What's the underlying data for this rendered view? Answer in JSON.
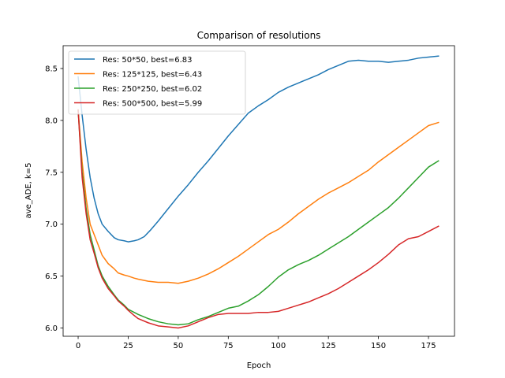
{
  "chart_data": {
    "type": "line",
    "title": "Comparison of resolutions",
    "xlabel": "Epoch",
    "ylabel": "ave_ADE, k=5",
    "xlim": [
      -7.5,
      188
    ],
    "ylim": [
      5.92,
      8.72
    ],
    "xticks": [
      0,
      25,
      50,
      75,
      100,
      125,
      150,
      175
    ],
    "yticks": [
      6.0,
      6.5,
      7.0,
      7.5,
      8.0,
      8.5
    ],
    "ytick_labels": [
      "6.0",
      "6.5",
      "7.0",
      "7.5",
      "8.0",
      "8.5"
    ],
    "grid": false,
    "legend_position": "upper-left",
    "series": [
      {
        "name": "Res: 50*50, best=6.83",
        "color": "#1f77b4",
        "x": [
          0,
          2,
          4,
          6,
          8,
          10,
          12,
          15,
          18,
          20,
          23,
          25,
          28,
          30,
          33,
          36,
          40,
          45,
          50,
          55,
          60,
          65,
          70,
          75,
          80,
          85,
          90,
          95,
          100,
          105,
          110,
          115,
          120,
          125,
          130,
          135,
          140,
          145,
          150,
          155,
          160,
          165,
          170,
          175,
          180
        ],
        "values": [
          8.42,
          8.05,
          7.72,
          7.45,
          7.25,
          7.1,
          7.0,
          6.93,
          6.87,
          6.85,
          6.84,
          6.83,
          6.84,
          6.85,
          6.88,
          6.94,
          7.03,
          7.15,
          7.27,
          7.38,
          7.5,
          7.61,
          7.73,
          7.85,
          7.96,
          8.07,
          8.14,
          8.2,
          8.27,
          8.32,
          8.36,
          8.4,
          8.44,
          8.49,
          8.53,
          8.57,
          8.58,
          8.57,
          8.57,
          8.56,
          8.57,
          8.58,
          8.6,
          8.61,
          8.62
        ]
      },
      {
        "name": "Res: 125*125, best=6.43",
        "color": "#ff7f0e",
        "x": [
          0,
          2,
          4,
          6,
          8,
          10,
          12,
          15,
          18,
          20,
          23,
          25,
          28,
          30,
          35,
          40,
          45,
          50,
          55,
          60,
          65,
          70,
          75,
          80,
          85,
          90,
          95,
          100,
          105,
          110,
          115,
          120,
          125,
          130,
          135,
          140,
          145,
          150,
          155,
          160,
          165,
          170,
          175,
          180
        ],
        "values": [
          8.1,
          7.6,
          7.25,
          7.0,
          6.9,
          6.8,
          6.7,
          6.62,
          6.57,
          6.53,
          6.51,
          6.5,
          6.48,
          6.47,
          6.45,
          6.44,
          6.44,
          6.43,
          6.45,
          6.48,
          6.52,
          6.57,
          6.63,
          6.69,
          6.76,
          6.83,
          6.9,
          6.95,
          7.02,
          7.1,
          7.17,
          7.24,
          7.3,
          7.35,
          7.4,
          7.46,
          7.52,
          7.6,
          7.67,
          7.74,
          7.81,
          7.88,
          7.95,
          7.98
        ]
      },
      {
        "name": "Res: 250*250, best=6.02",
        "color": "#2ca02c",
        "x": [
          0,
          2,
          4,
          6,
          8,
          10,
          12,
          15,
          18,
          20,
          23,
          25,
          28,
          30,
          35,
          40,
          45,
          50,
          55,
          60,
          65,
          70,
          75,
          80,
          85,
          90,
          95,
          100,
          105,
          110,
          115,
          120,
          125,
          130,
          135,
          140,
          145,
          150,
          155,
          160,
          165,
          170,
          175,
          180
        ],
        "values": [
          8.1,
          7.5,
          7.15,
          6.9,
          6.75,
          6.6,
          6.5,
          6.4,
          6.32,
          6.27,
          6.22,
          6.18,
          6.15,
          6.13,
          6.09,
          6.06,
          6.04,
          6.03,
          6.04,
          6.08,
          6.11,
          6.15,
          6.19,
          6.21,
          6.26,
          6.32,
          6.4,
          6.49,
          6.56,
          6.61,
          6.65,
          6.7,
          6.76,
          6.82,
          6.88,
          6.95,
          7.02,
          7.09,
          7.16,
          7.25,
          7.35,
          7.45,
          7.55,
          7.61
        ]
      },
      {
        "name": "Res: 500*500, best=5.99",
        "color": "#d62728",
        "x": [
          0,
          2,
          4,
          6,
          8,
          10,
          12,
          15,
          18,
          20,
          23,
          25,
          28,
          30,
          35,
          40,
          45,
          50,
          55,
          60,
          65,
          70,
          75,
          80,
          85,
          90,
          95,
          100,
          105,
          110,
          115,
          120,
          125,
          130,
          135,
          140,
          145,
          150,
          155,
          160,
          165,
          170,
          175,
          180
        ],
        "values": [
          8.1,
          7.45,
          7.1,
          6.85,
          6.72,
          6.58,
          6.48,
          6.38,
          6.31,
          6.26,
          6.21,
          6.17,
          6.12,
          6.09,
          6.05,
          6.02,
          6.01,
          6.0,
          6.02,
          6.06,
          6.1,
          6.13,
          6.14,
          6.14,
          6.14,
          6.15,
          6.15,
          6.16,
          6.19,
          6.22,
          6.25,
          6.29,
          6.33,
          6.38,
          6.44,
          6.5,
          6.56,
          6.63,
          6.71,
          6.8,
          6.86,
          6.88,
          6.93,
          6.98
        ]
      }
    ]
  }
}
